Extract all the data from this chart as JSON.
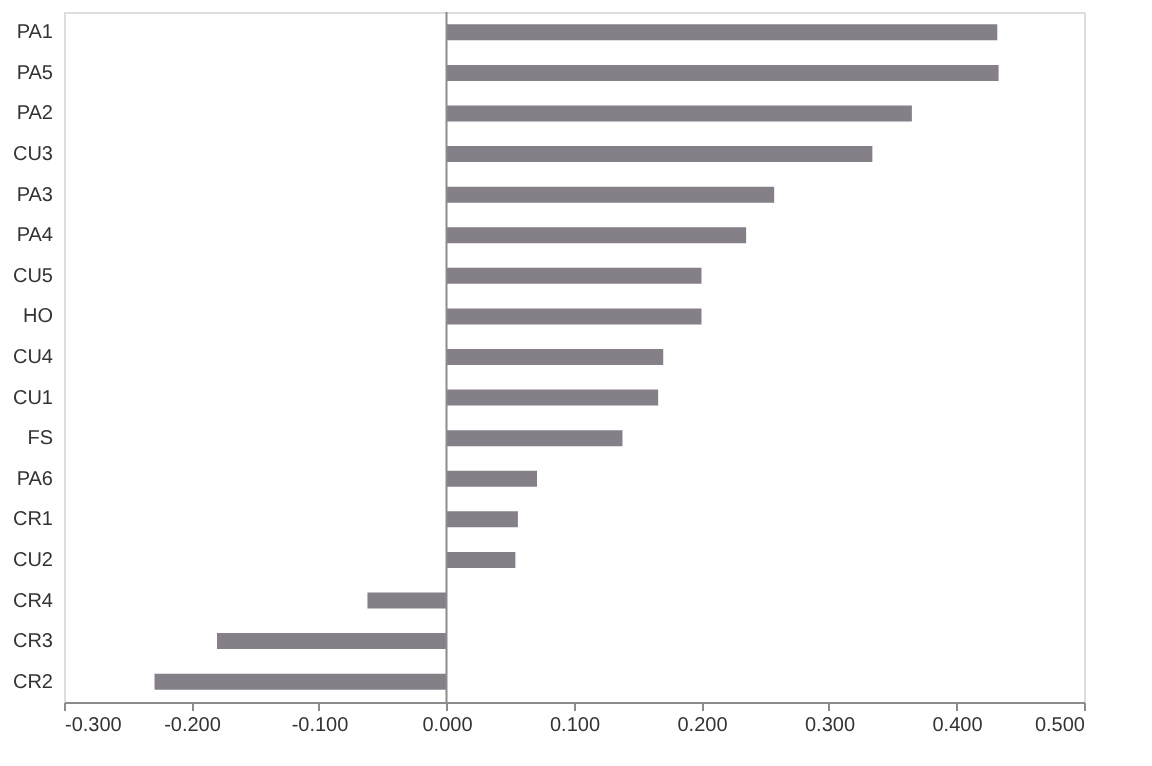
{
  "chart_data": {
    "type": "bar",
    "orientation": "horizontal",
    "categories": [
      "PA1",
      "PA5",
      "PA2",
      "CU3",
      "PA3",
      "PA4",
      "CU5",
      "HO",
      "CU4",
      "CU1",
      "FS",
      "PA6",
      "CR1",
      "CU2",
      "CR4",
      "CR3",
      "CR2"
    ],
    "values": [
      0.432,
      0.433,
      0.365,
      0.334,
      0.257,
      0.235,
      0.2,
      0.2,
      0.17,
      0.166,
      0.138,
      0.071,
      0.056,
      0.054,
      -0.062,
      -0.18,
      -0.229
    ],
    "color": "#857f88",
    "xlim": [
      -0.3,
      0.5
    ],
    "xticks": [
      {
        "value": -0.3,
        "label": "-0.300"
      },
      {
        "value": -0.2,
        "label": "-0.200"
      },
      {
        "value": -0.1,
        "label": "-0.100"
      },
      {
        "value": 0,
        "label": "0.000"
      },
      {
        "value": 0.1,
        "label": "0.100"
      },
      {
        "value": 0.2,
        "label": "0.200"
      },
      {
        "value": 0.3,
        "label": "0.300"
      },
      {
        "value": 0.4,
        "label": "0.400"
      },
      {
        "value": 0.5,
        "label": "0.500"
      }
    ],
    "ref_lines": [
      {
        "axis": "x",
        "value": 0,
        "color": "#8c8c8c"
      }
    ],
    "grid": false
  }
}
